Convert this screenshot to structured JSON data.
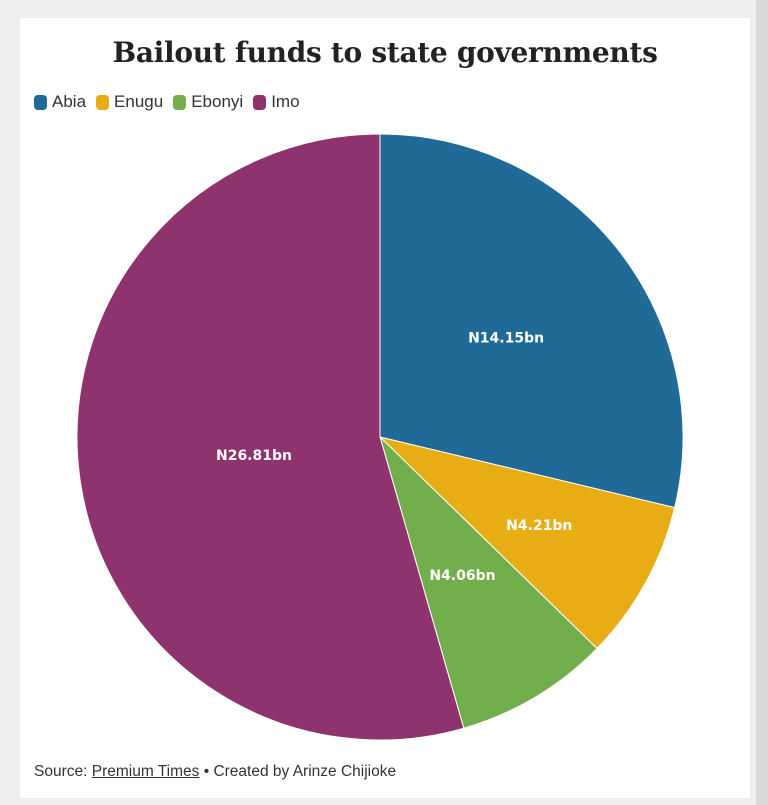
{
  "chart_data": {
    "type": "pie",
    "title": "Bailout funds to state governments",
    "categories": [
      "Abia",
      "Enugu",
      "Ebonyi",
      "Imo"
    ],
    "values": [
      14.15,
      4.21,
      4.06,
      26.81
    ],
    "data_labels": [
      "N14.15bn",
      "N4.21bn",
      "N4.06bn",
      "N26.81bn"
    ],
    "colors": [
      "#1f6a96",
      "#e8ad14",
      "#73ae4c",
      "#8f336f"
    ],
    "legend_position": "top-left",
    "start_angle_deg": 0,
    "direction": "clockwise"
  },
  "source": {
    "prefix": "Source: ",
    "name": "Premium Times",
    "separator": " • ",
    "credit": "Created by Arinze Chijioke"
  }
}
